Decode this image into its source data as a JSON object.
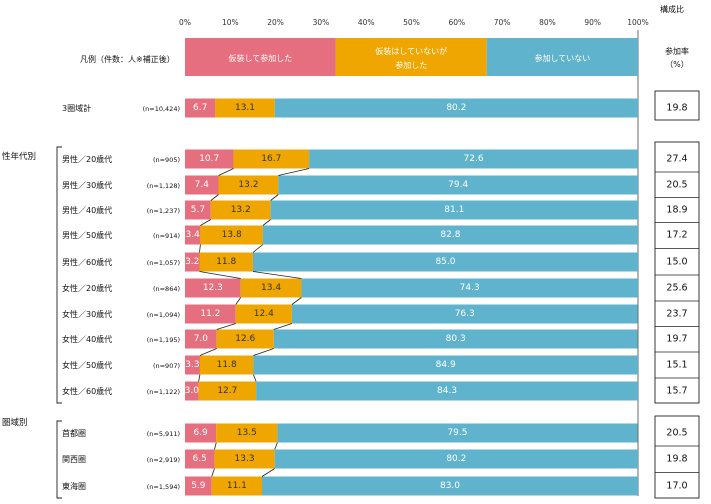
{
  "chart_data": {
    "type": "bar",
    "orientation": "horizontal",
    "stacked": true,
    "xlim": [
      0,
      100
    ],
    "xticks": [
      "0%",
      "10%",
      "20%",
      "30%",
      "40%",
      "50%",
      "60%",
      "70%",
      "80%",
      "90%",
      "100%"
    ],
    "axis_title": "構成比",
    "legend_caption": "凡例（件数：人※補正後）",
    "series": [
      {
        "name": "仮装して参加した",
        "color": "#e56f7e"
      },
      {
        "name_lines": [
          "仮装はしていないが",
          "参加した"
        ],
        "color": "#f0a600"
      },
      {
        "name": "参加していない",
        "color": "#5fb3cc"
      }
    ],
    "rate_header": [
      "参加率",
      "（%）"
    ],
    "groups": [
      {
        "label": "",
        "rows": [
          {
            "label": "3圏域計",
            "n": "(n=10,424)",
            "values": [
              "6.7",
              "13.1",
              "80.2"
            ],
            "rate": "19.8"
          }
        ]
      },
      {
        "label": "性年代別",
        "rows": [
          {
            "label": "男性／20歳代",
            "n": "(n=905)",
            "values": [
              "10.7",
              "16.7",
              "72.6"
            ],
            "rate": "27.4"
          },
          {
            "label": "男性／30歳代",
            "n": "(n=1,128)",
            "values": [
              "7.4",
              "13.2",
              "79.4"
            ],
            "rate": "20.5"
          },
          {
            "label": "男性／40歳代",
            "n": "(n=1,237)",
            "values": [
              "5.7",
              "13.2",
              "81.1"
            ],
            "rate": "18.9"
          },
          {
            "label": "男性／50歳代",
            "n": "(n=914)",
            "values": [
              "3.4",
              "13.8",
              "82.8"
            ],
            "rate": "17.2"
          },
          {
            "label": "男性／60歳代",
            "n": "(n=1,057)",
            "values": [
              "3.2",
              "11.8",
              "85.0"
            ],
            "rate": "15.0"
          },
          {
            "label": "女性／20歳代",
            "n": "(n=864)",
            "values": [
              "12.3",
              "13.4",
              "74.3"
            ],
            "rate": "25.6"
          },
          {
            "label": "女性／30歳代",
            "n": "(n=1,094)",
            "values": [
              "11.2",
              "12.4",
              "76.3"
            ],
            "rate": "23.7"
          },
          {
            "label": "女性／40歳代",
            "n": "(n=1,195)",
            "values": [
              "7.0",
              "12.6",
              "80.3"
            ],
            "rate": "19.7"
          },
          {
            "label": "女性／50歳代",
            "n": "(n=907)",
            "values": [
              "3.3",
              "11.8",
              "84.9"
            ],
            "rate": "15.1"
          },
          {
            "label": "女性／60歳代",
            "n": "(n=1,122)",
            "values": [
              "3.0",
              "12.7",
              "84.3"
            ],
            "rate": "15.7"
          }
        ]
      },
      {
        "label": "圏域別",
        "rows": [
          {
            "label": "首都圏",
            "n": "(n=5,911)",
            "values": [
              "6.9",
              "13.5",
              "79.5"
            ],
            "rate": "20.5"
          },
          {
            "label": "関西圏",
            "n": "(n=2,919)",
            "values": [
              "6.5",
              "13.3",
              "80.2"
            ],
            "rate": "19.8"
          },
          {
            "label": "東海圏",
            "n": "(n=1,594)",
            "values": [
              "5.9",
              "11.1",
              "83.0"
            ],
            "rate": "17.0"
          }
        ]
      }
    ]
  }
}
